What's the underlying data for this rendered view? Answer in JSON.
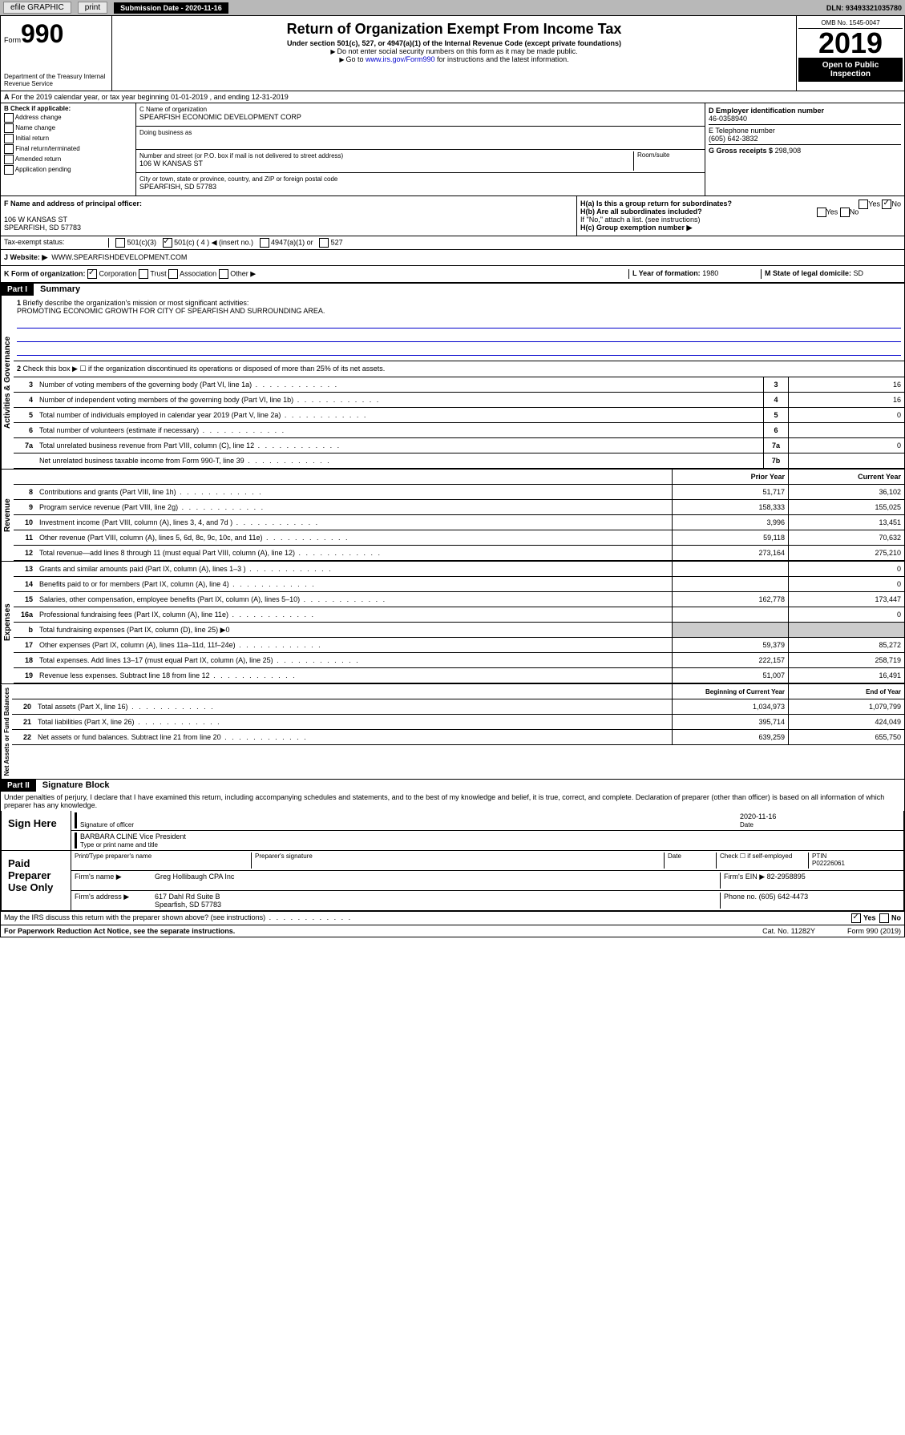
{
  "topbar": {
    "efile": "efile GRAPHIC",
    "print": "print",
    "sub_label": "Submission Date - 2020-11-16",
    "dln": "DLN: 93493321035780"
  },
  "header": {
    "form": "Form",
    "form_num": "990",
    "dept": "Department of the Treasury\nInternal Revenue Service",
    "title": "Return of Organization Exempt From Income Tax",
    "subtitle": "Under section 501(c), 527, or 4947(a)(1) of the Internal Revenue Code (except private foundations)",
    "inst1": "Do not enter social security numbers on this form as it may be made public.",
    "inst2_pre": "Go to ",
    "inst2_link": "www.irs.gov/Form990",
    "inst2_post": " for instructions and the latest information.",
    "omb": "OMB No. 1545-0047",
    "year": "2019",
    "open": "Open to Public Inspection"
  },
  "rowA": "For the 2019 calendar year, or tax year beginning 01-01-2019  , and ending 12-31-2019",
  "boxB": {
    "label": "B Check if applicable:",
    "items": [
      "Address change",
      "Name change",
      "Initial return",
      "Final return/terminated",
      "Amended return",
      "Application pending"
    ]
  },
  "boxC": {
    "name_label": "C Name of organization",
    "name": "SPEARFISH ECONOMIC DEVELOPMENT CORP",
    "dba_label": "Doing business as",
    "addr_label": "Number and street (or P.O. box if mail is not delivered to street address)",
    "room_label": "Room/suite",
    "addr": "106 W KANSAS ST",
    "city_label": "City or town, state or province, country, and ZIP or foreign postal code",
    "city": "SPEARFISH, SD  57783"
  },
  "boxD": {
    "label": "D Employer identification number",
    "val": "46-0358940"
  },
  "boxE": {
    "label": "E Telephone number",
    "val": "(605) 642-3832"
  },
  "boxG": {
    "label": "G Gross receipts $",
    "val": "298,908"
  },
  "boxF": {
    "label": "F  Name and address of principal officer:",
    "addr1": "106 W KANSAS ST",
    "addr2": "SPEARFISH, SD  57783"
  },
  "boxH": {
    "a": "H(a)  Is this a group return for subordinates?",
    "b": "H(b)  Are all subordinates included?",
    "b2": "If \"No,\" attach a list. (see instructions)",
    "c": "H(c)  Group exemption number ▶",
    "yes": "Yes",
    "no": "No"
  },
  "boxI": {
    "label": "Tax-exempt status:",
    "opts": [
      "501(c)(3)",
      "501(c) ( 4 ) ◀ (insert no.)",
      "4947(a)(1) or",
      "527"
    ]
  },
  "boxJ": {
    "label": "J Website: ▶",
    "val": "WWW.SPEARFISHDEVELOPMENT.COM"
  },
  "boxK": {
    "label": "K Form of organization:",
    "opts": [
      "Corporation",
      "Trust",
      "Association",
      "Other ▶"
    ]
  },
  "boxL": {
    "label": "L Year of formation:",
    "val": "1980"
  },
  "boxM": {
    "label": "M State of legal domicile:",
    "val": "SD"
  },
  "partI": {
    "hdr": "Part I",
    "title": "Summary"
  },
  "gov": {
    "label": "Activities & Governance",
    "l1": "Briefly describe the organization's mission or most significant activities:",
    "l1_val": "PROMOTING ECONOMIC GROWTH FOR CITY OF SPEARFISH AND SURROUNDING AREA.",
    "l2": "Check this box ▶ ☐  if the organization discontinued its operations or disposed of more than 25% of its net assets.",
    "lines": [
      {
        "n": "3",
        "d": "Number of voting members of the governing body (Part VI, line 1a)",
        "b": "3",
        "v": "16"
      },
      {
        "n": "4",
        "d": "Number of independent voting members of the governing body (Part VI, line 1b)",
        "b": "4",
        "v": "16"
      },
      {
        "n": "5",
        "d": "Total number of individuals employed in calendar year 2019 (Part V, line 2a)",
        "b": "5",
        "v": "0"
      },
      {
        "n": "6",
        "d": "Total number of volunteers (estimate if necessary)",
        "b": "6",
        "v": ""
      },
      {
        "n": "7a",
        "d": "Total unrelated business revenue from Part VIII, column (C), line 12",
        "b": "7a",
        "v": "0"
      },
      {
        "n": "",
        "d": "Net unrelated business taxable income from Form 990-T, line 39",
        "b": "7b",
        "v": ""
      }
    ]
  },
  "rev": {
    "label": "Revenue",
    "hdr_prior": "Prior Year",
    "hdr_curr": "Current Year",
    "lines": [
      {
        "n": "8",
        "d": "Contributions and grants (Part VIII, line 1h)",
        "p": "51,717",
        "c": "36,102"
      },
      {
        "n": "9",
        "d": "Program service revenue (Part VIII, line 2g)",
        "p": "158,333",
        "c": "155,025"
      },
      {
        "n": "10",
        "d": "Investment income (Part VIII, column (A), lines 3, 4, and 7d )",
        "p": "3,996",
        "c": "13,451"
      },
      {
        "n": "11",
        "d": "Other revenue (Part VIII, column (A), lines 5, 6d, 8c, 9c, 10c, and 11e)",
        "p": "59,118",
        "c": "70,632"
      },
      {
        "n": "12",
        "d": "Total revenue—add lines 8 through 11 (must equal Part VIII, column (A), line 12)",
        "p": "273,164",
        "c": "275,210"
      }
    ]
  },
  "exp": {
    "label": "Expenses",
    "lines": [
      {
        "n": "13",
        "d": "Grants and similar amounts paid (Part IX, column (A), lines 1–3 )",
        "p": "",
        "c": "0"
      },
      {
        "n": "14",
        "d": "Benefits paid to or for members (Part IX, column (A), line 4)",
        "p": "",
        "c": "0"
      },
      {
        "n": "15",
        "d": "Salaries, other compensation, employee benefits (Part IX, column (A), lines 5–10)",
        "p": "162,778",
        "c": "173,447"
      },
      {
        "n": "16a",
        "d": "Professional fundraising fees (Part IX, column (A), line 11e)",
        "p": "",
        "c": "0"
      },
      {
        "n": "b",
        "d": "Total fundraising expenses (Part IX, column (D), line 25) ▶0",
        "p": "—",
        "c": "—"
      },
      {
        "n": "17",
        "d": "Other expenses (Part IX, column (A), lines 11a–11d, 11f–24e)",
        "p": "59,379",
        "c": "85,272"
      },
      {
        "n": "18",
        "d": "Total expenses. Add lines 13–17 (must equal Part IX, column (A), line 25)",
        "p": "222,157",
        "c": "258,719"
      },
      {
        "n": "19",
        "d": "Revenue less expenses. Subtract line 18 from line 12",
        "p": "51,007",
        "c": "16,491"
      }
    ]
  },
  "net": {
    "label": "Net Assets or Fund Balances",
    "hdr_beg": "Beginning of Current Year",
    "hdr_end": "End of Year",
    "lines": [
      {
        "n": "20",
        "d": "Total assets (Part X, line 16)",
        "p": "1,034,973",
        "c": "1,079,799"
      },
      {
        "n": "21",
        "d": "Total liabilities (Part X, line 26)",
        "p": "395,714",
        "c": "424,049"
      },
      {
        "n": "22",
        "d": "Net assets or fund balances. Subtract line 21 from line 20",
        "p": "639,259",
        "c": "655,750"
      }
    ]
  },
  "partII": {
    "hdr": "Part II",
    "title": "Signature Block"
  },
  "penalty": "Under penalties of perjury, I declare that I have examined this return, including accompanying schedules and statements, and to the best of my knowledge and belief, it is true, correct, and complete. Declaration of preparer (other than officer) is based on all information of which preparer has any knowledge.",
  "sign": {
    "label": "Sign Here",
    "sig_label": "Signature of officer",
    "date": "2020-11-16",
    "date_label": "Date",
    "name": "BARBARA CLINE  Vice President",
    "name_label": "Type or print name and title"
  },
  "paid": {
    "label": "Paid Preparer Use Only",
    "h1": "Print/Type preparer's name",
    "h2": "Preparer's signature",
    "h3": "Date",
    "h4": "Check ☐ if self-employed",
    "h5": "PTIN",
    "ptin": "P02226061",
    "firm_label": "Firm's name   ▶",
    "firm": "Greg Hollibaugh CPA Inc",
    "ein_label": "Firm's EIN ▶",
    "ein": "82-2958895",
    "addr_label": "Firm's address ▶",
    "addr": "617 Dahl Rd Suite B",
    "addr2": "Spearfish, SD  57783",
    "phone_label": "Phone no.",
    "phone": "(605) 642-4473"
  },
  "discuss": "May the IRS discuss this return with the preparer shown above? (see instructions)",
  "footer": {
    "pra": "For Paperwork Reduction Act Notice, see the separate instructions.",
    "cat": "Cat. No. 11282Y",
    "form": "Form 990 (2019)"
  }
}
